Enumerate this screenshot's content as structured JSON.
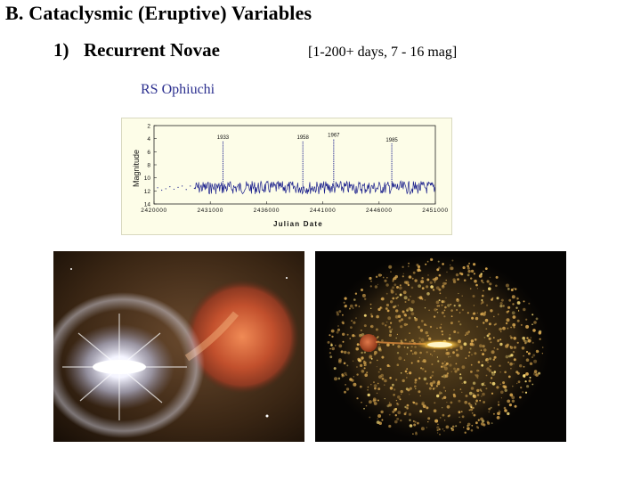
{
  "slide": {
    "title": "B. Cataclysmic (Eruptive) Variables",
    "subtitle_number": "1)",
    "subtitle_text": "Recurrent Novae",
    "range": "[1-200+ days, 7 - 16 mag]",
    "star_name": "RS Ophiuchi"
  },
  "chart_data": {
    "type": "line",
    "title": "",
    "xlabel": "Julian Date",
    "ylabel": "Magnitude",
    "xlim": [
      2420000,
      2451000
    ],
    "ylim": [
      14,
      2
    ],
    "y_inverted": true,
    "x_ticks": [
      "2420000",
      "2431000",
      "2436000",
      "2441000",
      "2446000",
      "2451000"
    ],
    "y_ticks": [
      "2",
      "4",
      "6",
      "8",
      "10",
      "12",
      "14"
    ],
    "series_color": "#1a1f8c",
    "outbursts": [
      {
        "label": "1933",
        "x": 2427600,
        "peak_mag": 4.3
      },
      {
        "label": "1958",
        "x": 2436400,
        "peak_mag": 4.3
      },
      {
        "label": "1967",
        "x": 2439800,
        "peak_mag": 4.0
      },
      {
        "label": "1985",
        "x": 2446200,
        "peak_mag": 4.7
      }
    ],
    "quiescent_mag": [
      10.5,
      12.5
    ]
  },
  "images": [
    {
      "name": "nova-artist-impression",
      "colors": [
        "#f7f7ff",
        "#c6543a",
        "#5b3a20"
      ]
    },
    {
      "name": "binary-disk-ejecta-illustration",
      "colors": [
        "#d9a850",
        "#a5481f",
        "#ffe27a"
      ]
    }
  ]
}
